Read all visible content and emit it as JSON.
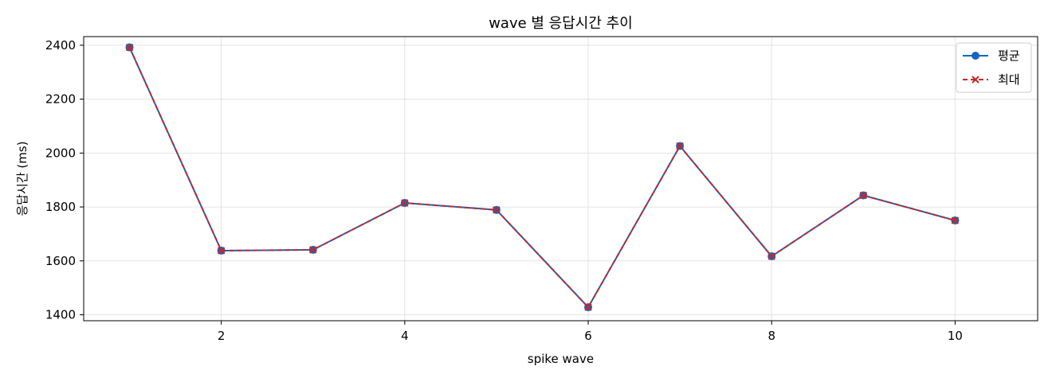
{
  "chart_data": {
    "type": "line",
    "title": "wave 별 응답시간 추이",
    "xlabel": "spike wave",
    "ylabel": "응답시간 (ms)",
    "x": [
      1,
      2,
      3,
      4,
      5,
      6,
      7,
      8,
      9,
      10
    ],
    "xlim": [
      0.5,
      10.9
    ],
    "ylim": [
      1378,
      2432
    ],
    "xticks": [
      2,
      4,
      6,
      8,
      10
    ],
    "yticks": [
      1400,
      1600,
      1800,
      2000,
      2200,
      2400
    ],
    "grid": true,
    "legend_position": "top-right",
    "series": [
      {
        "name": "평균",
        "color": "#1565c0",
        "line_style": "solid",
        "marker": "circle",
        "values": [
          2392,
          1638,
          1641,
          1815,
          1789,
          1428,
          2026,
          1617,
          1843,
          1750
        ]
      },
      {
        "name": "최대",
        "color": "#c62828",
        "line_style": "dashed",
        "marker": "x",
        "values": [
          2392,
          1638,
          1641,
          1815,
          1789,
          1428,
          2026,
          1617,
          1843,
          1750
        ]
      }
    ]
  }
}
